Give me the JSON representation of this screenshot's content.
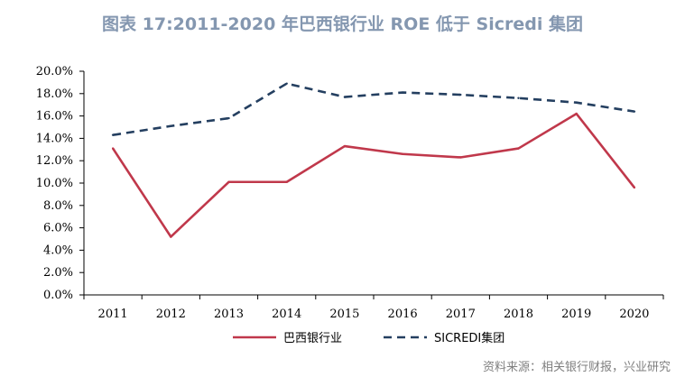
{
  "figure": {
    "title": "图表 17:2011-2020 年巴西银行业 ROE 低于 Sicredi 集团",
    "source": "资料来源：相关银行财报，兴业研究"
  },
  "chart_data": {
    "type": "line",
    "x": [
      "2011",
      "2012",
      "2013",
      "2014",
      "2015",
      "2016",
      "2017",
      "2018",
      "2019",
      "2020"
    ],
    "series": [
      {
        "name": "巴西银行业",
        "values": [
          13.1,
          5.2,
          10.1,
          10.1,
          13.3,
          12.6,
          12.3,
          13.1,
          16.2,
          9.6
        ],
        "color": "#C0384B",
        "style": "solid"
      },
      {
        "name": "SICREDI集团",
        "values": [
          14.3,
          15.1,
          15.8,
          18.9,
          17.7,
          18.1,
          17.9,
          17.6,
          17.2,
          16.4
        ],
        "color": "#243F60",
        "style": "dashed"
      }
    ],
    "ylim": [
      0,
      20
    ],
    "yticks": [
      "0.0%",
      "2.0%",
      "4.0%",
      "6.0%",
      "8.0%",
      "10.0%",
      "12.0%",
      "14.0%",
      "16.0%",
      "18.0%",
      "20.0%"
    ],
    "grid": false,
    "legend_position": "bottom"
  }
}
